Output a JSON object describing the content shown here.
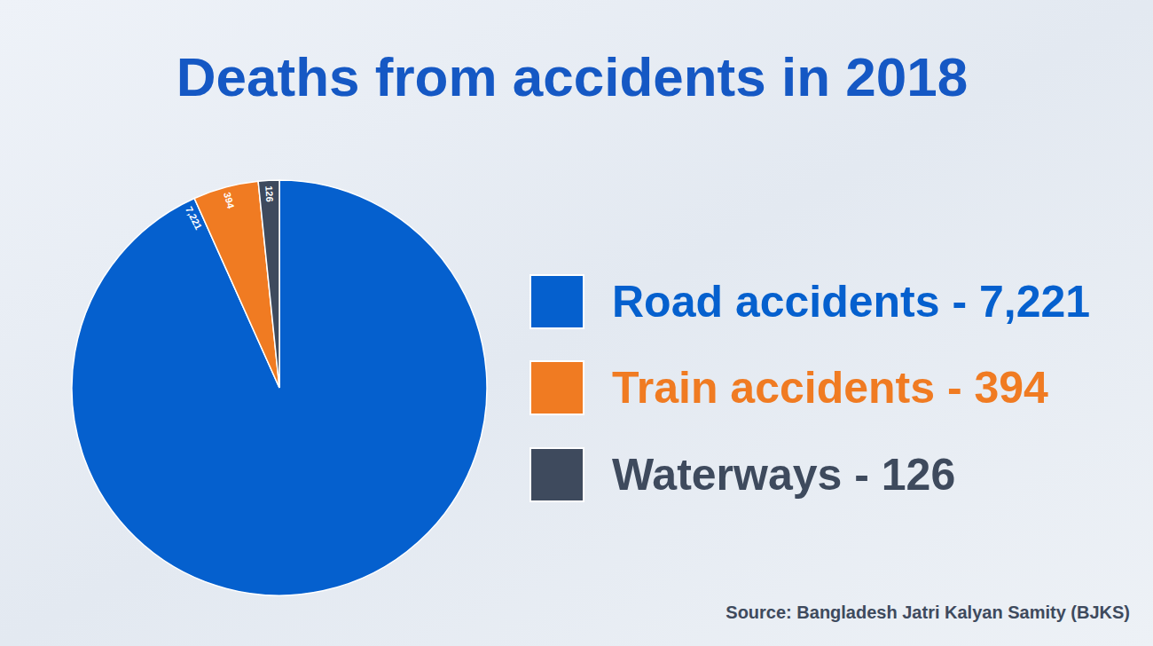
{
  "chart_data": {
    "type": "pie",
    "title": "Deaths from accidents in 2018",
    "categories": [
      "Road accidents - 7,221",
      "Train accidents - 394",
      "Waterways - 126"
    ],
    "values": [
      7221,
      394,
      126
    ],
    "value_labels": [
      "7,221",
      "394",
      "126"
    ],
    "colors": [
      "#0560ce",
      "#f07b22",
      "#3e4a5d"
    ],
    "data_labels": true,
    "legend": "right",
    "annotations": [
      "Source: Bangladesh Jatri Kalyan Samity (BJKS)"
    ]
  }
}
